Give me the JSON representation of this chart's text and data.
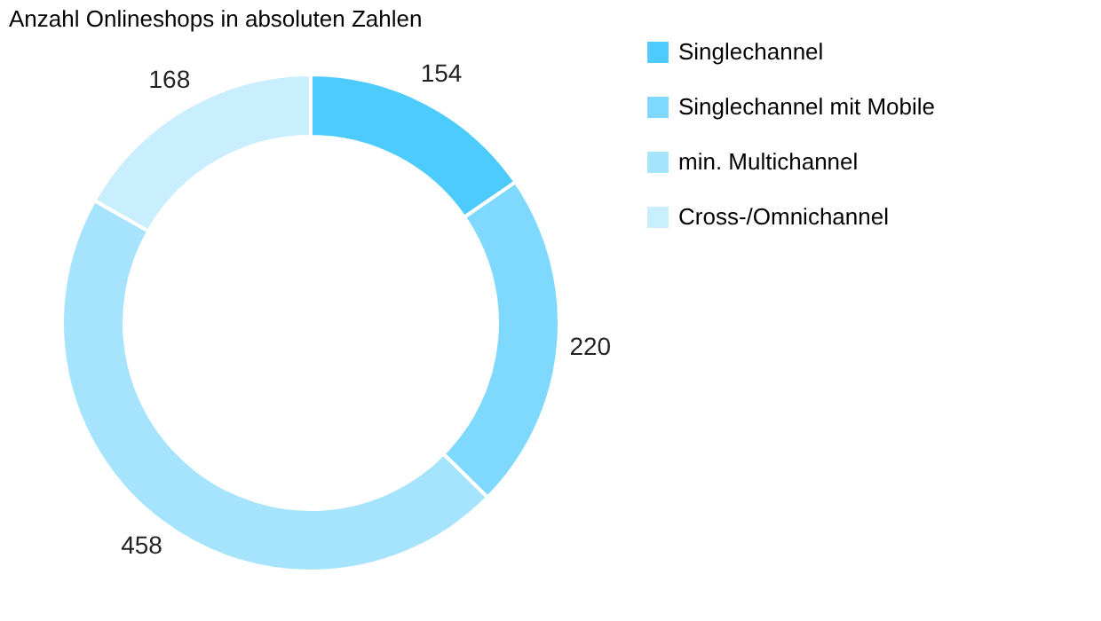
{
  "chart_data": {
    "type": "donut",
    "title": "Anzahl Onlineshops in absoluten Zahlen",
    "categories": [
      "Singlechannel",
      "Singlechannel mit Mobile",
      "min. Multichannel",
      "Cross-/Omnichannel"
    ],
    "values": [
      154,
      220,
      458,
      168
    ],
    "colors": [
      "#4dcbfd",
      "#7fd8fd",
      "#a6e3fd",
      "#c9eefd"
    ],
    "data_labels": true,
    "legend": "right"
  }
}
